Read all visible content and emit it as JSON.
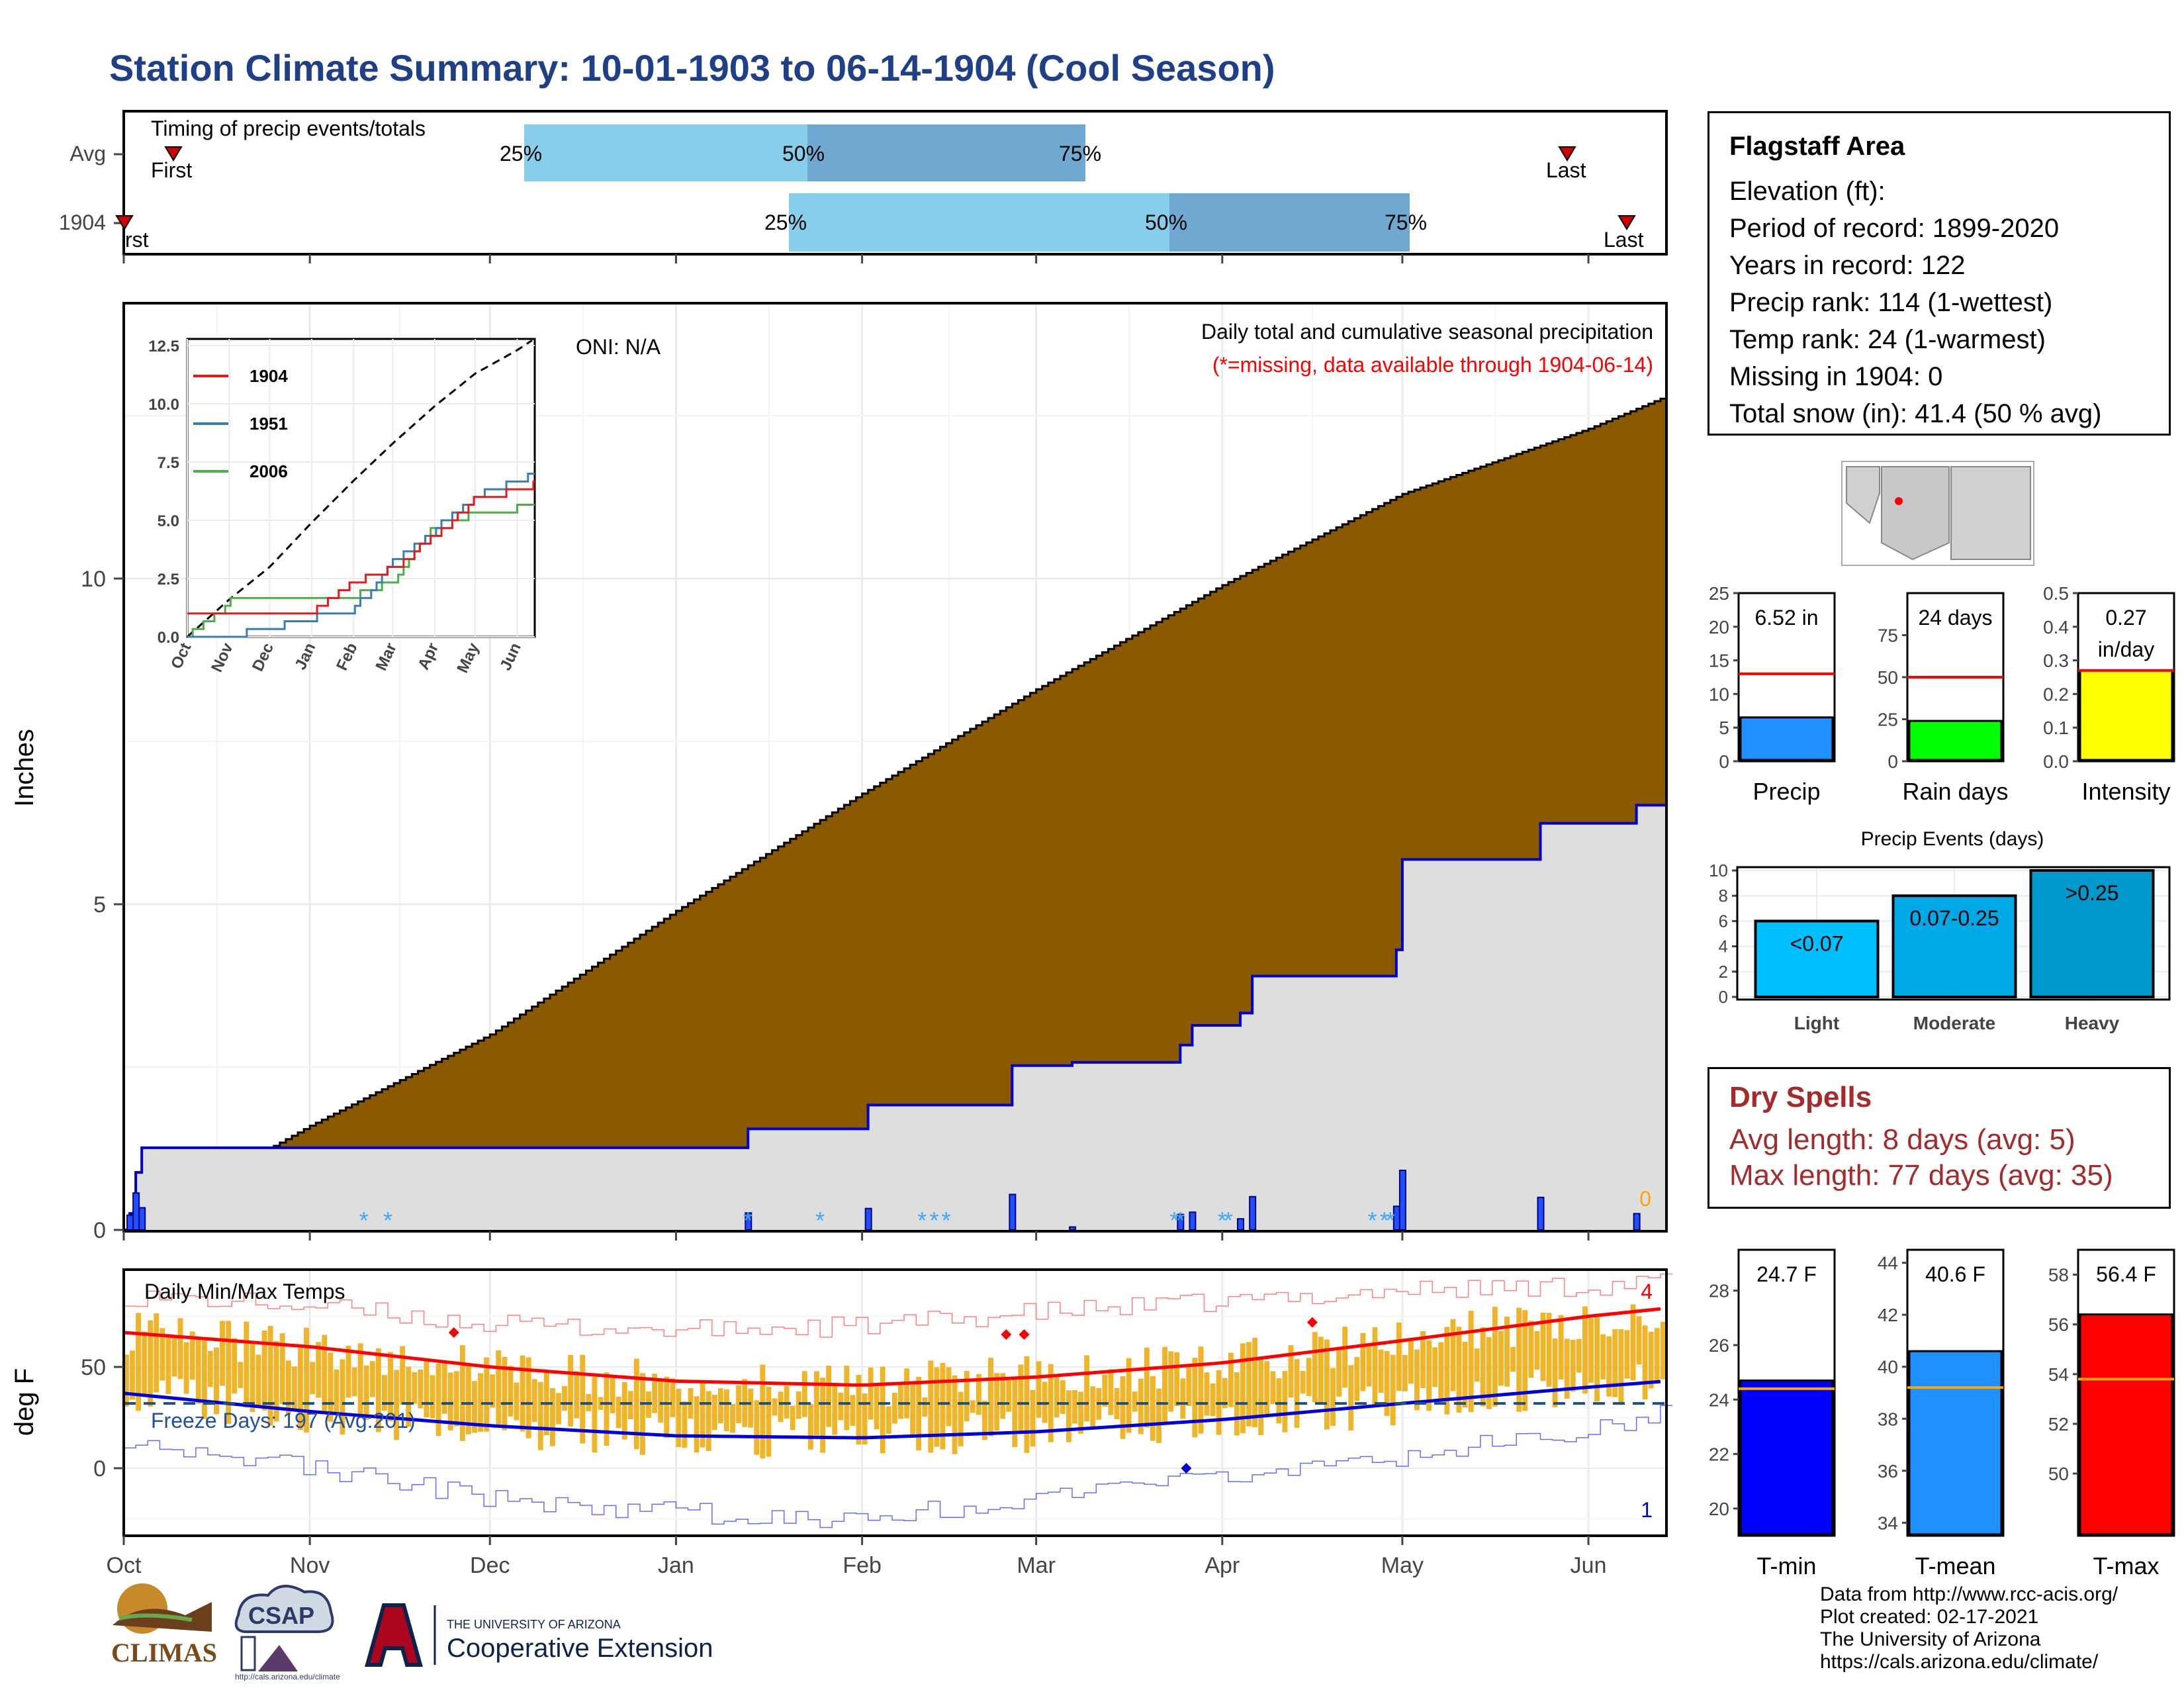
{
  "title": "Station Climate Summary: 10-01-1903 to 06-14-1904 (Cool Season)",
  "timing": {
    "heading": "Timing of precip events/totals",
    "row_labels": [
      "Avg",
      "1904"
    ],
    "first_label": "First",
    "first_label_truncated": "rst",
    "last_label": "Last",
    "pct_labels": [
      "25%",
      "50%",
      "75%"
    ]
  },
  "main": {
    "y_label": "Inches",
    "oni": "ONI: N/A",
    "caption": "Daily total and cumulative seasonal precipitation",
    "missing_note": "(*=missing, data available through 1904-06-14)",
    "missing_count": "0",
    "y_ticks": [
      "0",
      "5",
      "10"
    ]
  },
  "inset": {
    "y_ticks": [
      "0.0",
      "2.5",
      "5.0",
      "7.5",
      "10.0",
      "12.5"
    ],
    "x_ticks": [
      "Oct",
      "Nov",
      "Dec",
      "Jan",
      "Feb",
      "Mar",
      "Apr",
      "May",
      "Jun"
    ],
    "legend": [
      {
        "name": "1904",
        "color": "#e41a1c"
      },
      {
        "name": "1951",
        "color": "#377eb8"
      },
      {
        "name": "2006",
        "color": "#4daf4a"
      }
    ]
  },
  "temps": {
    "heading": "Daily Min/Max Temps",
    "y_label": "deg F",
    "freeze": "Freeze Days: 197 (Avg:201)",
    "record_high_count": "4",
    "record_low_count": "1",
    "y_ticks": [
      "0",
      "50"
    ]
  },
  "x_axis": [
    "Oct",
    "Nov",
    "Dec",
    "Jan",
    "Feb",
    "Mar",
    "Apr",
    "May",
    "Jun"
  ],
  "info": {
    "name": "Flagstaff Area",
    "lines": [
      "Elevation (ft):",
      "Period of record: 1899-2020",
      "Years in record: 122",
      "Precip rank: 114 (1-wettest)",
      "Temp rank: 24 (1-warmest)",
      "Missing in 1904: 0",
      "Total snow (in): 41.4 (50 % avg)"
    ]
  },
  "precip_bars": [
    {
      "label": "Precip",
      "value_text": "6.52 in",
      "value": 6.52,
      "avg": 13.0,
      "ymax": 25,
      "ticks": [
        "0",
        "5",
        "10",
        "15",
        "20",
        "25"
      ],
      "color": "#1e90ff"
    },
    {
      "label": "Rain days",
      "value_text": "24 days",
      "value": 24,
      "avg": 50,
      "ymax": 100,
      "ticks": [
        "0",
        "25",
        "50",
        "75"
      ],
      "color": "#00ff00"
    },
    {
      "label": "Intensity",
      "value_text": "0.27",
      "value_text2": "in/day",
      "value": 0.27,
      "avg": 0.27,
      "ymax": 0.5,
      "ticks": [
        "0.0",
        "0.1",
        "0.2",
        "0.3",
        "0.4",
        "0.5"
      ],
      "color": "#ffff00"
    }
  ],
  "events": {
    "title": "Precip Events (days)",
    "ticks": [
      "0",
      "2",
      "4",
      "6",
      "8",
      "10"
    ],
    "bars": [
      {
        "label": "Light",
        "inner": "<0.07",
        "value": 6,
        "color": "#00bfff"
      },
      {
        "label": "Moderate",
        "inner": "0.07-0.25",
        "value": 8,
        "color": "#00a9e6"
      },
      {
        "label": "Heavy",
        "inner": ">0.25",
        "value": 10,
        "color": "#0099cc"
      }
    ]
  },
  "dry": {
    "heading": "Dry Spells",
    "avg": "Avg length: 8 days (avg: 5)",
    "max": "Max length: 77 days (avg: 35)"
  },
  "temp_bars": [
    {
      "label": "T-min",
      "value_text": "24.7 F",
      "value": 24.7,
      "avg": 24.4,
      "ymin": 19,
      "ymax": 29.5,
      "ticks": [
        "20",
        "22",
        "24",
        "26",
        "28"
      ],
      "color": "#0000ff"
    },
    {
      "label": "T-mean",
      "value_text": "40.6 F",
      "value": 40.6,
      "avg": 39.2,
      "ymin": 33.5,
      "ymax": 44.5,
      "ticks": [
        "34",
        "36",
        "38",
        "40",
        "42",
        "44"
      ],
      "color": "#1e90ff"
    },
    {
      "label": "T-max",
      "value_text": "56.4 F",
      "value": 56.4,
      "avg": 53.8,
      "ymin": 47.5,
      "ymax": 59,
      "ticks": [
        "50",
        "52",
        "54",
        "56",
        "58"
      ],
      "color": "#ff0000"
    }
  ],
  "footer": [
    "Data from http://www.rcc-acis.org/",
    "Plot created: 02-17-2021",
    "The University of Arizona",
    "https://cals.arizona.edu/climate/"
  ],
  "logos": {
    "climas": "CLIMAS",
    "csap": "CSAP",
    "csap_url": "http://cals.arizona.edu/climate",
    "ua_small": "THE UNIVERSITY OF ARIZONA",
    "ua_big": "Cooperative Extension"
  },
  "chart_data": [
    {
      "type": "area",
      "title": "Daily total and cumulative seasonal precipitation",
      "ylabel": "Inches",
      "x": [
        "Oct",
        "Nov",
        "Dec",
        "Jan",
        "Feb",
        "Mar",
        "Apr",
        "May",
        "Jun",
        "Jun 14"
      ],
      "series": [
        {
          "name": "Avg cumulative",
          "values": [
            0.0,
            1.6,
            3.0,
            4.9,
            6.7,
            8.3,
            9.9,
            11.3,
            12.3,
            12.8
          ]
        },
        {
          "name": "1904 cumulative",
          "values": [
            1.0,
            1.05,
            1.08,
            1.08,
            2.37,
            2.95,
            4.33,
            5.93,
            6.3,
            6.52
          ]
        }
      ],
      "ylim": [
        0,
        13
      ]
    },
    {
      "type": "line",
      "x": [
        "Oct",
        "Nov",
        "Dec",
        "Jan",
        "Feb",
        "Mar",
        "Apr",
        "May",
        "Jun",
        "Jun 14"
      ],
      "series": [
        {
          "name": "Avg",
          "values": [
            0.0,
            1.6,
            3.0,
            4.9,
            6.7,
            8.3,
            9.9,
            11.3,
            12.3,
            12.8
          ]
        },
        {
          "name": "1904",
          "values": [
            1.0,
            1.05,
            1.08,
            1.08,
            2.37,
            2.95,
            4.33,
            5.93,
            6.3,
            6.52
          ]
        },
        {
          "name": "1951",
          "values": [
            0.0,
            0.0,
            0.4,
            0.8,
            1.2,
            3.2,
            4.6,
            6.0,
            6.8,
            6.9
          ]
        },
        {
          "name": "2006",
          "values": [
            0.0,
            1.5,
            1.6,
            1.7,
            1.8,
            2.4,
            4.8,
            5.3,
            5.5,
            5.6
          ]
        }
      ],
      "ylim": [
        0,
        12.5
      ]
    },
    {
      "type": "bar",
      "title": "Daily Min/Max Temps",
      "ylabel": "deg F",
      "x": [
        "Oct",
        "Nov",
        "Dec",
        "Jan",
        "Feb",
        "Mar",
        "Apr",
        "May",
        "Jun",
        "Jun 14"
      ],
      "series": [
        {
          "name": "Avg max",
          "values": [
            67,
            60,
            50,
            43,
            41,
            45,
            52,
            63,
            75,
            79
          ]
        },
        {
          "name": "Avg min",
          "values": [
            37,
            28,
            21,
            16,
            15,
            18,
            24,
            32,
            40,
            43
          ]
        },
        {
          "name": "Record max",
          "values": [
            85,
            80,
            71,
            68,
            70,
            77,
            82,
            88,
            90,
            92
          ]
        },
        {
          "name": "Record min",
          "values": [
            15,
            0,
            -15,
            -22,
            -25,
            -15,
            -5,
            5,
            20,
            27
          ]
        }
      ],
      "ylim": [
        -38,
        92
      ]
    },
    {
      "type": "bar",
      "categories": [
        "Precip",
        "Rain days",
        "Intensity"
      ],
      "values": [
        6.52,
        24,
        0.27
      ]
    },
    {
      "type": "bar",
      "title": "Precip Events (days)",
      "categories": [
        "Light",
        "Moderate",
        "Heavy"
      ],
      "values": [
        6,
        8,
        10
      ],
      "ylim": [
        0,
        10
      ]
    },
    {
      "type": "bar",
      "categories": [
        "T-min",
        "T-mean",
        "T-max"
      ],
      "values": [
        24.7,
        40.6,
        56.4
      ]
    }
  ]
}
